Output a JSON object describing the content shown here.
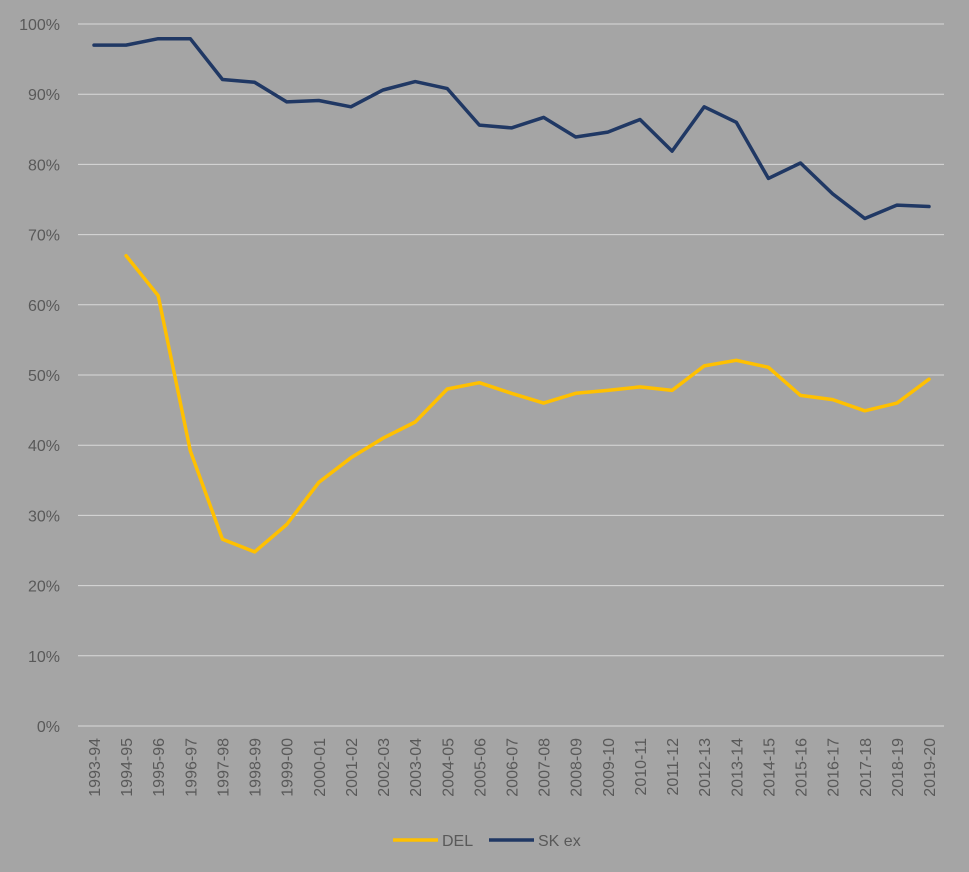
{
  "chart_data": {
    "type": "line",
    "title": "",
    "xlabel": "",
    "ylabel": "",
    "ylim": [
      0,
      100
    ],
    "y_ticks": [
      "0%",
      "10%",
      "20%",
      "30%",
      "40%",
      "50%",
      "60%",
      "70%",
      "80%",
      "90%",
      "100%"
    ],
    "grid": true,
    "legend_position": "bottom",
    "categories": [
      "1993-94",
      "1994-95",
      "1995-96",
      "1996-97",
      "1997-98",
      "1998-99",
      "1999-00",
      "2000-01",
      "2001-02",
      "2002-03",
      "2003-04",
      "2004-05",
      "2005-06",
      "2006-07",
      "2007-08",
      "2008-09",
      "2009-10",
      "2010-11",
      "2011-12",
      "2012-13",
      "2013-14",
      "2014-15",
      "2015-16",
      "2016-17",
      "2017-18",
      "2018-19",
      "2019-20"
    ],
    "series": [
      {
        "name": "DEL",
        "color": "#ffc000",
        "values": [
          null,
          67.0,
          61.3,
          39.2,
          26.6,
          24.8,
          28.7,
          34.7,
          38.2,
          41.0,
          43.3,
          48.0,
          48.9,
          47.4,
          46.0,
          47.4,
          47.8,
          48.3,
          47.8,
          51.3,
          52.1,
          51.1,
          47.1,
          46.5,
          44.9,
          46.0,
          49.4
        ]
      },
      {
        "name": "SK ex",
        "color": "#203864",
        "values": [
          97.0,
          97.0,
          97.9,
          97.9,
          92.1,
          91.7,
          88.9,
          89.1,
          88.2,
          90.6,
          91.8,
          90.8,
          85.6,
          85.2,
          86.7,
          83.9,
          84.6,
          86.4,
          81.9,
          88.2,
          86.0,
          78.0,
          80.2,
          75.8,
          72.3,
          74.2,
          74.0
        ]
      }
    ]
  }
}
